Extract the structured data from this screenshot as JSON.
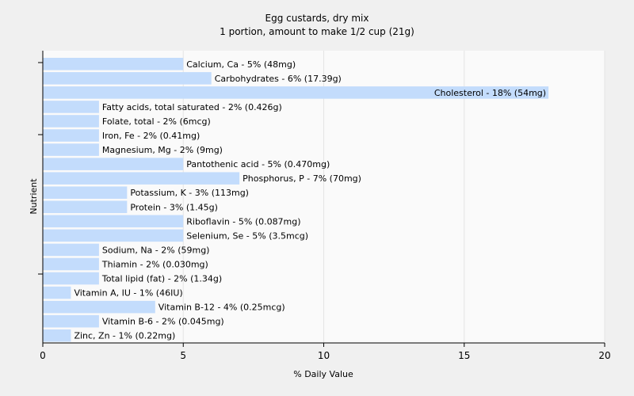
{
  "chart_data": {
    "type": "bar",
    "orientation": "horizontal",
    "title": "Egg custards, dry mix",
    "subtitle": "1 portion, amount to make 1/2 cup (21g)",
    "xlabel": "% Daily Value",
    "ylabel": "Nutrient",
    "xlim": [
      0,
      20
    ],
    "xticks": [
      "0",
      "5",
      "10",
      "15",
      "20"
    ],
    "grid": true,
    "bar_color": "#c3dcfc",
    "categories": [
      "Calcium, Ca",
      "Carbohydrates",
      "Cholesterol",
      "Fatty acids, total saturated",
      "Folate, total",
      "Iron, Fe",
      "Magnesium, Mg",
      "Pantothenic acid",
      "Phosphorus, P",
      "Potassium, K",
      "Protein",
      "Riboflavin",
      "Selenium, Se",
      "Sodium, Na",
      "Thiamin",
      "Total lipid (fat)",
      "Vitamin A, IU",
      "Vitamin B-12",
      "Vitamin B-6",
      "Zinc, Zn"
    ],
    "values": [
      5,
      6,
      18,
      2,
      2,
      2,
      2,
      5,
      7,
      3,
      3,
      5,
      5,
      2,
      2,
      2,
      1,
      4,
      2,
      1
    ],
    "labels": [
      "Calcium, Ca - 5% (48mg)",
      "Carbohydrates - 6% (17.39g)",
      "Cholesterol - 18% (54mg)",
      "Fatty acids, total saturated - 2% (0.426g)",
      "Folate, total - 2% (6mcg)",
      "Iron, Fe - 2% (0.41mg)",
      "Magnesium, Mg - 2% (9mg)",
      "Pantothenic acid - 5% (0.470mg)",
      "Phosphorus, P - 7% (70mg)",
      "Potassium, K - 3% (113mg)",
      "Protein - 3% (1.45g)",
      "Riboflavin - 5% (0.087mg)",
      "Selenium, Se - 5% (3.5mcg)",
      "Sodium, Na - 2% (59mg)",
      "Thiamin - 2% (0.030mg)",
      "Total lipid (fat) - 2% (1.34g)",
      "Vitamin A, IU - 1% (46IU)",
      "Vitamin B-12 - 4% (0.25mcg)",
      "Vitamin B-6 - 2% (0.045mg)",
      "Zinc, Zn - 1% (0.22mg)"
    ]
  }
}
